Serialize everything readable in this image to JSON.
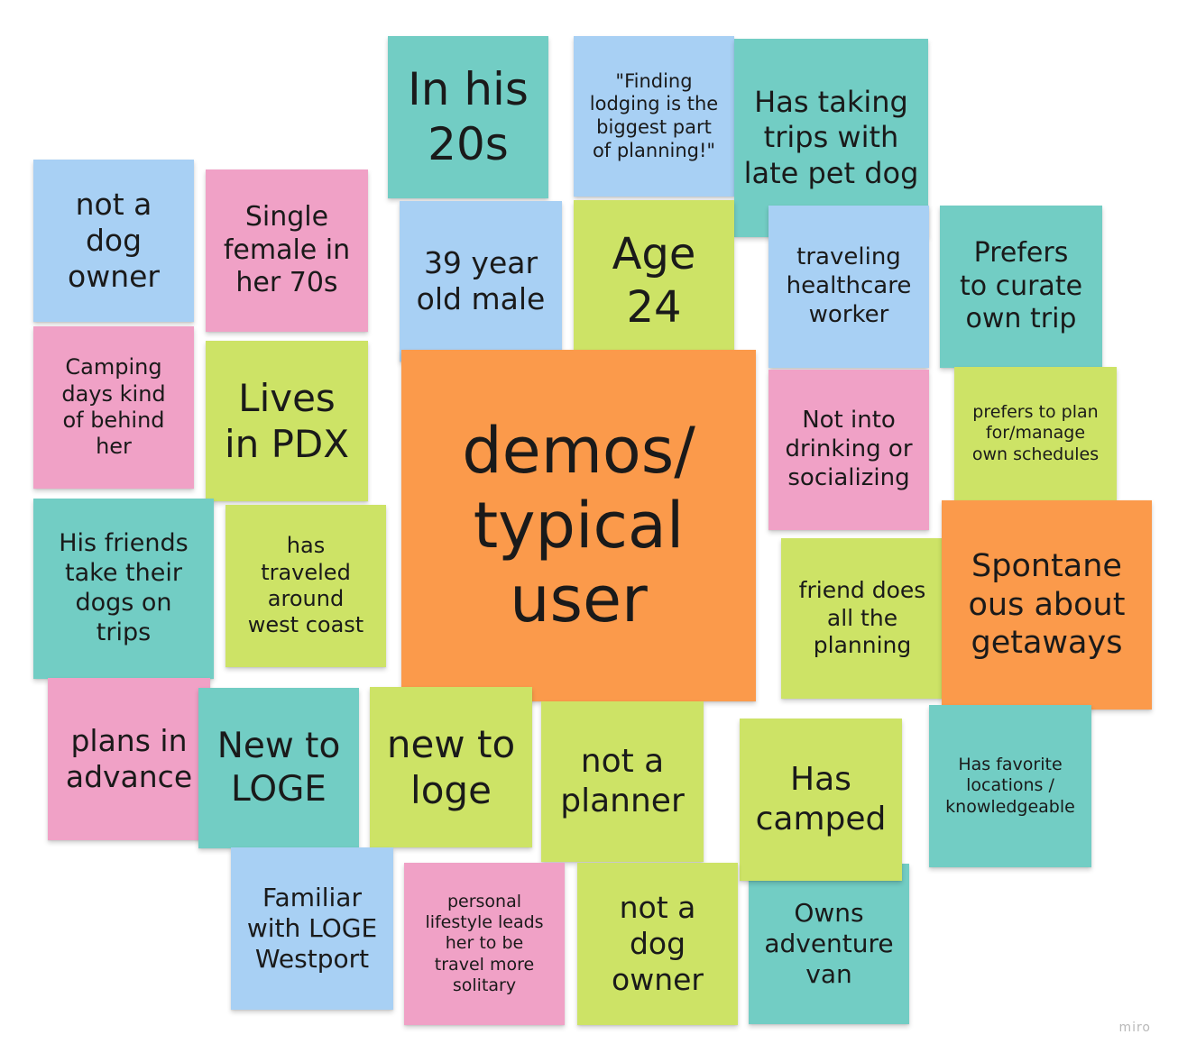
{
  "board": {
    "watermark": "miro",
    "notes": [
      {
        "id": "n1",
        "color": "teal",
        "text": "In his\n20s"
      },
      {
        "id": "n2",
        "color": "blue",
        "text": "\"Finding\nlodging is the\nbiggest part\nof planning!\""
      },
      {
        "id": "n3",
        "color": "teal",
        "text": "Has taking\ntrips with\nlate pet dog"
      },
      {
        "id": "n4",
        "color": "blue",
        "text": "not a\ndog\nowner"
      },
      {
        "id": "n5",
        "color": "pink",
        "text": "Single\nfemale in\nher 70s"
      },
      {
        "id": "n6",
        "color": "blue",
        "text": "39 year\nold male"
      },
      {
        "id": "n7",
        "color": "lime",
        "text": "Age\n24"
      },
      {
        "id": "n8",
        "color": "blue",
        "text": "traveling\nhealthcare\nworker"
      },
      {
        "id": "n9",
        "color": "teal",
        "text": "Prefers\nto curate\nown trip"
      },
      {
        "id": "n10",
        "color": "pink",
        "text": "Camping\ndays kind\nof behind\nher"
      },
      {
        "id": "n11",
        "color": "lime",
        "text": "Lives\nin PDX"
      },
      {
        "id": "n12",
        "color": "orange",
        "text": "demos/\ntypical\nuser"
      },
      {
        "id": "n13",
        "color": "pink",
        "text": "Not into\ndrinking or\nsocializing"
      },
      {
        "id": "n14",
        "color": "lime",
        "text": "prefers to plan\nfor/manage\nown schedules"
      },
      {
        "id": "n15",
        "color": "teal",
        "text": "His friends\ntake their\ndogs on\ntrips"
      },
      {
        "id": "n16",
        "color": "lime",
        "text": "has\ntraveled\naround\nwest coast"
      },
      {
        "id": "n17",
        "color": "lime",
        "text": "friend does\nall the\nplanning"
      },
      {
        "id": "n18",
        "color": "orange",
        "text": "Spontane\nous about\ngetaways"
      },
      {
        "id": "n19",
        "color": "pink",
        "text": "plans in\nadvance"
      },
      {
        "id": "n20",
        "color": "teal",
        "text": "New to\nLOGE"
      },
      {
        "id": "n21",
        "color": "lime",
        "text": "new to\nloge"
      },
      {
        "id": "n22",
        "color": "lime",
        "text": "not a\nplanner"
      },
      {
        "id": "n23",
        "color": "lime",
        "text": "Has\ncamped"
      },
      {
        "id": "n24",
        "color": "teal",
        "text": "Has favorite\nlocations /\nknowledgeable"
      },
      {
        "id": "n25",
        "color": "blue",
        "text": "Familiar\nwith LOGE\nWestport"
      },
      {
        "id": "n26",
        "color": "pink",
        "text": "personal\nlifestyle leads\nher to be\ntravel more\nsolitary"
      },
      {
        "id": "n27",
        "color": "lime",
        "text": "not a\ndog\nowner"
      },
      {
        "id": "n28",
        "color": "teal",
        "text": "Owns\nadventure\nvan"
      }
    ]
  }
}
